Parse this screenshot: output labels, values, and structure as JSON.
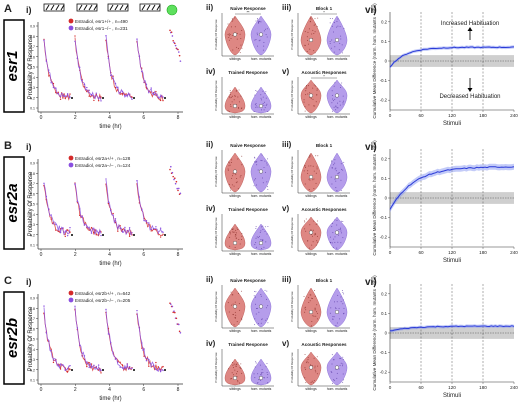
{
  "rows": [
    {
      "letter": "A",
      "gene": "esr1",
      "legend": [
        "Estradiol, esr1+/+ , n=490",
        "Estradiol, esr1−/− , n=231"
      ],
      "series_colors": [
        "#d42a2a",
        "#8a4fe0"
      ],
      "violin_colors": [
        "#d9736e",
        "#a98de8"
      ],
      "shaded_band": true
    },
    {
      "letter": "B",
      "gene": "esr2a",
      "legend": [
        "Estradiol, esr2a+/+ , n=128",
        "Estradiol, esr2a−/− , n=124"
      ],
      "series_colors": [
        "#d42a2a",
        "#8a4fe0"
      ],
      "violin_colors": [
        "#d9736e",
        "#a98de8"
      ],
      "shaded_band": true
    },
    {
      "letter": "C",
      "gene": "esr2b",
      "legend": [
        "Estradiol, esr2b+/+ , n=642",
        "Estradiol, esr2b−/− , n=205"
      ],
      "series_colors": [
        "#d42a2a",
        "#8a4fe0"
      ],
      "violin_colors": [
        "#d9736e",
        "#a98de8"
      ],
      "shaded_band": true
    }
  ],
  "panel_labels": {
    "i": "i)",
    "ii": "ii)",
    "iii": "iii)",
    "iv": "iv)",
    "v": "v)",
    "vi": "vi)"
  },
  "violin_titles": {
    "ii": "Naive Response",
    "iii": "Block 1",
    "iv": "Trained Response",
    "v": "Acoustic Responses"
  },
  "violin_groups": [
    "siblings",
    "hom. mutants"
  ],
  "violin_ylabel": "Probability Of Response",
  "time_axis": {
    "xlabel": "time (hr)",
    "ylabel": "Probability Of Response",
    "xticks": [
      "0",
      "2",
      "4",
      "6",
      "8"
    ],
    "yticks": [
      "0.1",
      "0.2",
      "0.3",
      "0.4",
      "0.5",
      "0.6",
      "0.7",
      "0.8",
      "0.9"
    ]
  },
  "cumulative_axis": {
    "xlabel": "Stimuli",
    "ylabel": "Cumulative Mean Difference (norm. hom. mutants - sibs)",
    "xticks": [
      "0",
      "60",
      "120",
      "180",
      "240"
    ],
    "yticks": [
      "-0.2",
      "-0.1",
      "0",
      "0.1",
      "0.2"
    ],
    "annotation_up": "Increased Habituation",
    "annotation_down": "Decreased Habituation"
  },
  "significance": {
    "A_ii": "**",
    "A_iii": "*",
    "A_v": "*"
  }
}
